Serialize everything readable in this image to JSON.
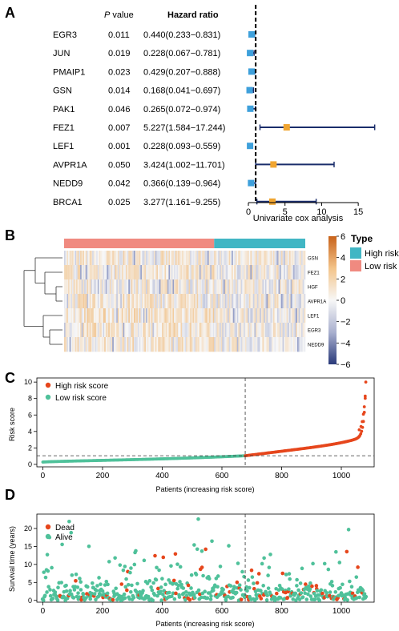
{
  "colors": {
    "high": "#e6461c",
    "low": "#4fc19a",
    "forest_line": "#1a2d6b",
    "box_blue": "#3ea0db",
    "box_orange": "#f0a531",
    "type_high": "#41b6c4",
    "type_low": "#f08a80"
  },
  "panels": {
    "a": {
      "letter": "A",
      "col_p_italic": "P",
      "col_p_rest": " value",
      "col_hr": "Hazard ratio",
      "xlabel": "Univariate cox analysis",
      "ticks": [
        "0",
        "5",
        "10",
        "15"
      ],
      "tick_values": [
        0,
        5,
        10,
        15
      ],
      "xlim": [
        0,
        17.5
      ],
      "ref_line": 1,
      "rows": [
        {
          "gene": "EGR3",
          "p": "0.011",
          "hr_text": "0.440(0.233−0.831)",
          "hr": 0.44,
          "lo": 0.233,
          "hi": 0.831,
          "risk": "low"
        },
        {
          "gene": "JUN",
          "p": "0.019",
          "hr_text": "0.228(0.067−0.781)",
          "hr": 0.228,
          "lo": 0.067,
          "hi": 0.781,
          "risk": "low"
        },
        {
          "gene": "PMAIP1",
          "p": "0.023",
          "hr_text": "0.429(0.207−0.888)",
          "hr": 0.429,
          "lo": 0.207,
          "hi": 0.888,
          "risk": "low"
        },
        {
          "gene": "GSN",
          "p": "0.014",
          "hr_text": "0.168(0.041−0.697)",
          "hr": 0.168,
          "lo": 0.041,
          "hi": 0.697,
          "risk": "low"
        },
        {
          "gene": "PAK1",
          "p": "0.046",
          "hr_text": "0.265(0.072−0.974)",
          "hr": 0.265,
          "lo": 0.072,
          "hi": 0.974,
          "risk": "low"
        },
        {
          "gene": "FEZ1",
          "p": "0.007",
          "hr_text": "5.227(1.584−17.244)",
          "hr": 5.227,
          "lo": 1.584,
          "hi": 17.244,
          "risk": "high"
        },
        {
          "gene": "LEF1",
          "p": "0.001",
          "hr_text": "0.228(0.093−0.559)",
          "hr": 0.228,
          "lo": 0.093,
          "hi": 0.559,
          "risk": "low"
        },
        {
          "gene": "AVPR1A",
          "p": "0.050",
          "hr_text": "3.424(1.002−11.701)",
          "hr": 3.424,
          "lo": 1.002,
          "hi": 11.701,
          "risk": "high"
        },
        {
          "gene": "NEDD9",
          "p": "0.042",
          "hr_text": "0.366(0.139−0.964)",
          "hr": 0.366,
          "lo": 0.139,
          "hi": 0.964,
          "risk": "low"
        },
        {
          "gene": "BRCA1",
          "p": "0.025",
          "hr_text": "3.277(1.161−9.255)",
          "hr": 3.277,
          "lo": 1.161,
          "hi": 9.255,
          "risk": "high"
        }
      ]
    },
    "b": {
      "letter": "B",
      "genes": [
        "GSN",
        "FEZ1",
        "HGF",
        "AVPR1A",
        "LEF1",
        "EGR3",
        "NEDD9"
      ],
      "legend_title": "Type",
      "legend_high": "High risk",
      "legend_low": "Low risk",
      "scale_ticks": [
        "6",
        "4",
        "2",
        "0",
        "−2",
        "−4",
        "−6"
      ],
      "scale_values": [
        6,
        4,
        2,
        0,
        -2,
        -4,
        -6
      ],
      "high_fraction": 0.38
    },
    "c": {
      "letter": "C",
      "legend_high": "High risk score",
      "legend_low": "Low risk score",
      "ylabel": "Risk score",
      "xlabel": "Patients (increasing risk score)",
      "xticks": [
        "0",
        "200",
        "400",
        "600",
        "800",
        "1000"
      ],
      "xtick_values": [
        0,
        200,
        400,
        600,
        800,
        1000
      ],
      "yticks": [
        "0",
        "2",
        "4",
        "6",
        "8",
        "10"
      ],
      "ytick_values": [
        0,
        2,
        4,
        6,
        8,
        10
      ],
      "xlim": [
        -20,
        1110
      ],
      "ylim": [
        -0.3,
        10.5
      ],
      "cutoff_index": 678,
      "cutoff_score": 1.05,
      "n": 1083
    },
    "d": {
      "letter": "D",
      "legend_dead": "Dead",
      "legend_alive": "Alive",
      "ylabel": "Survival time (years)",
      "xlabel": "Patients (increasing risk score)",
      "xticks": [
        "0",
        "200",
        "400",
        "600",
        "800",
        "1000"
      ],
      "xtick_values": [
        0,
        200,
        400,
        600,
        800,
        1000
      ],
      "yticks": [
        "0",
        "5",
        "10",
        "15",
        "20"
      ],
      "ytick_values": [
        0,
        5,
        10,
        15,
        20
      ],
      "xlim": [
        -20,
        1110
      ],
      "ylim": [
        -0.5,
        24
      ],
      "cutoff_index": 678
    }
  },
  "chart_data": [
    {
      "type": "forest",
      "xlabel": "Univariate cox analysis",
      "categories": [
        "EGR3",
        "JUN",
        "PMAIP1",
        "GSN",
        "PAK1",
        "FEZ1",
        "LEF1",
        "AVPR1A",
        "NEDD9",
        "BRCA1"
      ],
      "hazard_ratio": [
        0.44,
        0.228,
        0.429,
        0.168,
        0.265,
        5.227,
        0.228,
        3.424,
        0.366,
        3.277
      ],
      "ci_low": [
        0.233,
        0.067,
        0.207,
        0.041,
        0.072,
        1.584,
        0.093,
        1.002,
        0.139,
        1.161
      ],
      "ci_high": [
        0.831,
        0.781,
        0.888,
        0.697,
        0.974,
        17.244,
        0.559,
        11.701,
        0.964,
        9.255
      ],
      "p_value": [
        0.011,
        0.019,
        0.023,
        0.014,
        0.046,
        0.007,
        0.001,
        0.05,
        0.042,
        0.025
      ],
      "xlim": [
        0,
        17.5
      ]
    },
    {
      "type": "heatmap",
      "rows": [
        "GSN",
        "FEZ1",
        "HGF",
        "AVPR1A",
        "LEF1",
        "EGR3",
        "NEDD9"
      ],
      "annotation": [
        "Low risk",
        "High risk"
      ],
      "color_range": [
        -6,
        6
      ]
    },
    {
      "type": "scatter",
      "series": [
        {
          "name": "High risk score"
        },
        {
          "name": "Low risk score"
        }
      ],
      "ylabel": "Risk score",
      "xlabel": "Patients (increasing risk score)",
      "xlim": [
        0,
        1083
      ],
      "ylim": [
        0,
        10
      ],
      "cutoff_x": 678,
      "cutoff_y": 1.05,
      "max_y": 10
    },
    {
      "type": "scatter",
      "series": [
        {
          "name": "Dead"
        },
        {
          "name": "Alive"
        }
      ],
      "ylabel": "Survival time (years)",
      "xlabel": "Patients (increasing risk score)",
      "xlim": [
        0,
        1083
      ],
      "ylim": [
        0,
        23
      ],
      "cutoff_x": 678
    }
  ]
}
